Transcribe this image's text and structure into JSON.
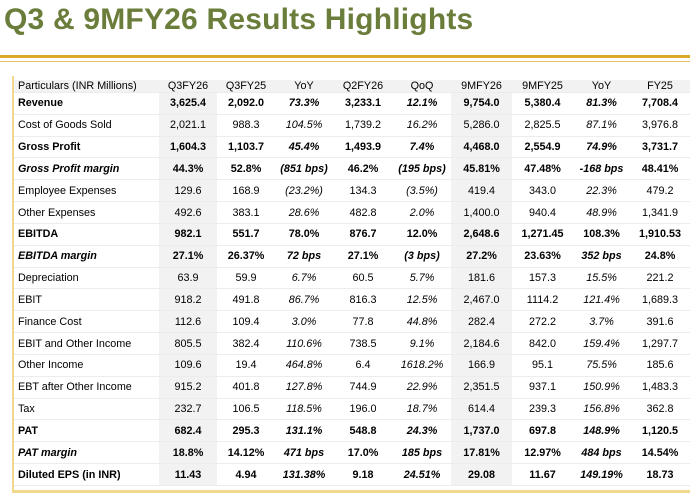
{
  "title": "Q3 & 9MFY26 Results Highlights",
  "colors": {
    "title": "#6b7d3b",
    "accent_line": "#d9aa2a",
    "shaded_column": "#f2f2f2"
  },
  "table": {
    "headers": [
      "Particulars  (INR Millions)",
      "Q3FY26",
      "Q3FY25",
      "YoY",
      "Q2FY26",
      "QoQ",
      "9MFY26",
      "9MFY25",
      "YoY",
      "FY25"
    ],
    "rows": [
      {
        "style": "bold",
        "italic_cols": [
          3,
          5,
          8
        ],
        "cells": [
          "Revenue",
          "3,625.4",
          "2,092.0",
          "73.3%",
          "3,233.1",
          "12.1%",
          "9,754.0",
          "5,380.4",
          "81.3%",
          "7,708.4"
        ]
      },
      {
        "style": "normal",
        "italic_cols": [
          3,
          5,
          8
        ],
        "cells": [
          "Cost of Goods Sold",
          "2,021.1",
          "988.3",
          "104.5%",
          "1,739.2",
          "16.2%",
          "5,286.0",
          "2,825.5",
          "87.1%",
          "3,976.8"
        ]
      },
      {
        "style": "bold",
        "italic_cols": [
          3,
          5,
          8
        ],
        "cells": [
          "Gross Profit",
          "1,604.3",
          "1,103.7",
          "45.4%",
          "1,493.9",
          "7.4%",
          "4,468.0",
          "2,554.9",
          "74.9%",
          "3,731.7"
        ]
      },
      {
        "style": "bi",
        "italic_cols": [
          3,
          5,
          8
        ],
        "cells": [
          "Gross Profit margin",
          "44.3%",
          "52.8%",
          "(851 bps)",
          "46.2%",
          "(195 bps)",
          "45.81%",
          "47.48%",
          "-168 bps",
          "48.41%"
        ]
      },
      {
        "style": "normal",
        "italic_cols": [
          3,
          5,
          8
        ],
        "cells": [
          "Employee Expenses",
          "129.6",
          "168.9",
          "(23.2%)",
          "134.3",
          "(3.5%)",
          "419.4",
          "343.0",
          "22.3%",
          "479.2"
        ]
      },
      {
        "style": "normal",
        "italic_cols": [
          3,
          5,
          8
        ],
        "cells": [
          "Other Expenses",
          "492.6",
          "383.1",
          "28.6%",
          "482.8",
          "2.0%",
          "1,400.0",
          "940.4",
          "48.9%",
          "1,341.9"
        ]
      },
      {
        "style": "bold",
        "italic_cols": [],
        "cells": [
          "EBITDA",
          "982.1",
          "551.7",
          "78.0%",
          "876.7",
          "12.0%",
          "2,648.6",
          "1,271.45",
          "108.3%",
          "1,910.53"
        ]
      },
      {
        "style": "bi",
        "italic_cols": [
          3,
          5,
          8
        ],
        "cells": [
          "EBITDA margin",
          "27.1%",
          "26.37%",
          "72 bps",
          "27.1%",
          "(3 bps)",
          "27.2%",
          "23.63%",
          "352 bps",
          "24.8%"
        ]
      },
      {
        "style": "normal",
        "italic_cols": [
          3,
          5,
          8
        ],
        "cells": [
          "Depreciation",
          "63.9",
          "59.9",
          "6.7%",
          "60.5",
          "5.7%",
          "181.6",
          "157.3",
          "15.5%",
          "221.2"
        ]
      },
      {
        "style": "normal",
        "italic_cols": [
          3,
          5,
          8
        ],
        "cells": [
          "EBIT",
          "918.2",
          "491.8",
          "86.7%",
          "816.3",
          "12.5%",
          "2,467.0",
          "1114.2",
          "121.4%",
          "1,689.3"
        ]
      },
      {
        "style": "normal",
        "italic_cols": [
          3,
          5,
          8
        ],
        "cells": [
          "Finance Cost",
          "112.6",
          "109.4",
          "3.0%",
          "77.8",
          "44.8%",
          "282.4",
          "272.2",
          "3.7%",
          "391.6"
        ]
      },
      {
        "style": "normal",
        "italic_cols": [
          3,
          5,
          8
        ],
        "cells": [
          "EBIT and Other Income",
          "805.5",
          "382.4",
          "110.6%",
          "738.5",
          "9.1%",
          "2,184.6",
          "842.0",
          "159.4%",
          "1,297.7"
        ]
      },
      {
        "style": "normal",
        "italic_cols": [
          3,
          5,
          8
        ],
        "cells": [
          "Other Income",
          "109.6",
          "19.4",
          "464.8%",
          "6.4",
          "1618.2%",
          "166.9",
          "95.1",
          "75.5%",
          "185.6"
        ]
      },
      {
        "style": "normal",
        "italic_cols": [
          3,
          5,
          8
        ],
        "cells": [
          "EBT after Other Income",
          "915.2",
          "401.8",
          "127.8%",
          "744.9",
          "22.9%",
          "2,351.5",
          "937.1",
          "150.9%",
          "1,483.3"
        ]
      },
      {
        "style": "normal",
        "italic_cols": [
          3,
          5,
          8
        ],
        "cells": [
          "Tax",
          "232.7",
          "106.5",
          "118.5%",
          "196.0",
          "18.7%",
          "614.4",
          "239.3",
          "156.8%",
          "362.8"
        ]
      },
      {
        "style": "bold",
        "italic_cols": [
          3,
          5,
          8
        ],
        "cells": [
          "PAT",
          "682.4",
          "295.3",
          "131.1%",
          "548.8",
          "24.3%",
          "1,737.0",
          "697.8",
          "148.9%",
          "1,120.5"
        ]
      },
      {
        "style": "bi",
        "italic_cols": [
          3,
          5,
          8
        ],
        "cells": [
          "PAT margin",
          "18.8%",
          "14.12%",
          "471 bps",
          "17.0%",
          "185 bps",
          "17.81%",
          "12.97%",
          "484 bps",
          "14.54%"
        ]
      },
      {
        "style": "bold",
        "italic_cols": [
          3,
          5,
          8
        ],
        "cells": [
          "Diluted EPS (in INR)",
          "11.43",
          "4.94",
          "131.38%",
          "9.18",
          "24.51%",
          "29.08",
          "11.67",
          "149.19%",
          "18.73"
        ]
      }
    ]
  }
}
